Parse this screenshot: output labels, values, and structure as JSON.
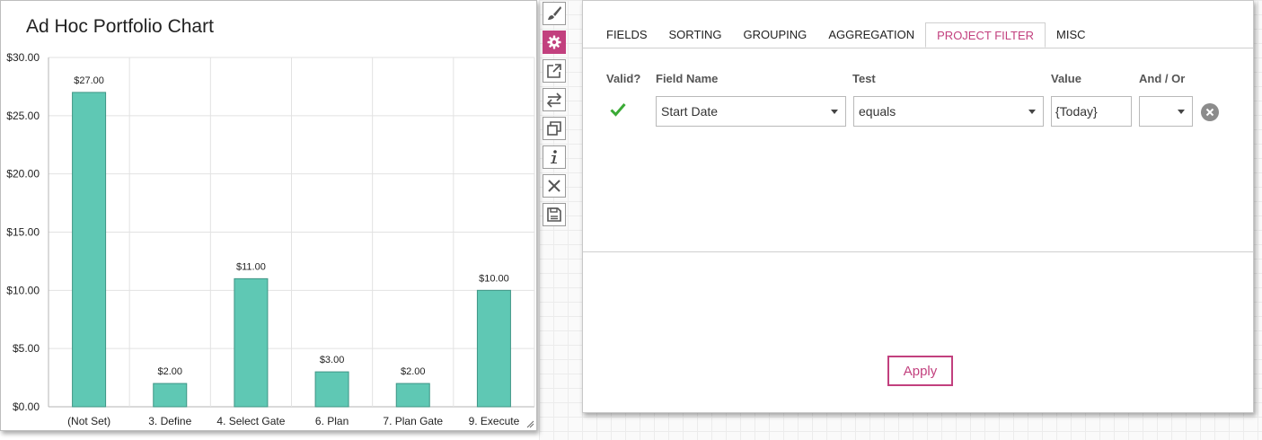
{
  "chart": {
    "title": "Ad Hoc Portfolio Chart"
  },
  "chart_data": {
    "type": "bar",
    "categories": [
      "(Not Set)",
      "3. Define",
      "4. Select Gate",
      "6. Plan",
      "7. Plan Gate",
      "9. Execute"
    ],
    "values": [
      27,
      2,
      11,
      3,
      2,
      10
    ],
    "value_labels": [
      "$27.00",
      "$2.00",
      "$11.00",
      "$3.00",
      "$2.00",
      "$10.00"
    ],
    "yticks": [
      0,
      5,
      10,
      15,
      20,
      25,
      30
    ],
    "ytick_labels": [
      "$0.00",
      "$5.00",
      "$10.00",
      "$15.00",
      "$20.00",
      "$25.00",
      "$30.00"
    ],
    "ylim": [
      0,
      30
    ],
    "grid": true,
    "bar_color": "#5fc8b4"
  },
  "toolbar": {
    "items": [
      {
        "name": "paintbrush-icon",
        "active": false
      },
      {
        "name": "gear-icon",
        "active": true
      },
      {
        "name": "pop-out-icon",
        "active": false
      },
      {
        "name": "swap-arrows-icon",
        "active": false
      },
      {
        "name": "copy-icon",
        "active": false
      },
      {
        "name": "info-icon",
        "active": false
      },
      {
        "name": "close-icon",
        "active": false
      },
      {
        "name": "save-icon",
        "active": false
      }
    ]
  },
  "panel": {
    "tabs": [
      "FIELDS",
      "SORTING",
      "GROUPING",
      "AGGREGATION",
      "PROJECT FILTER",
      "MISC"
    ],
    "active_tab": "PROJECT FILTER",
    "columns": {
      "valid": "Valid?",
      "field_name": "Field Name",
      "test": "Test",
      "value": "Value",
      "and_or": "And / Or"
    },
    "filter_row": {
      "field_name": "Start Date",
      "test": "equals",
      "value": "{Today}",
      "and_or": ""
    },
    "apply_label": "Apply"
  },
  "colors": {
    "accent": "#c2407e",
    "valid_check": "#3aaa35",
    "bar": "#5fc8b4"
  }
}
